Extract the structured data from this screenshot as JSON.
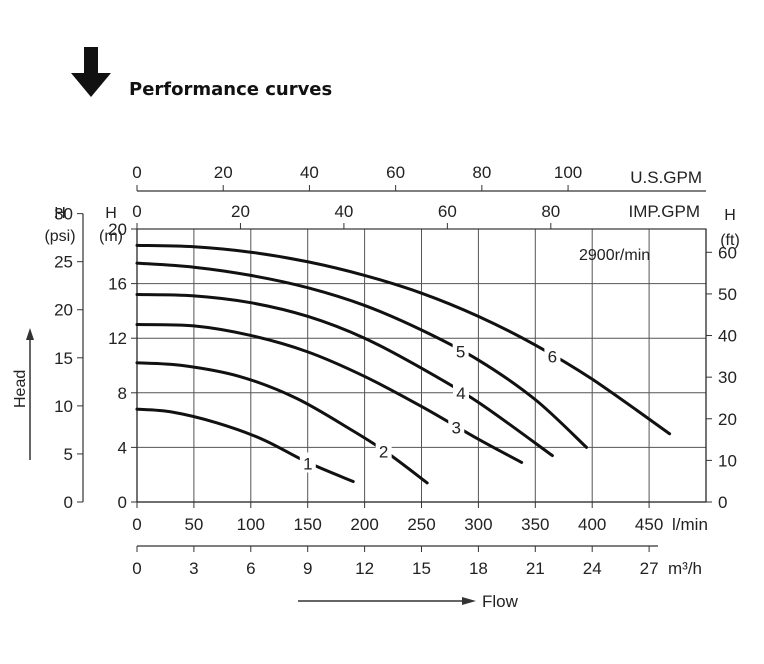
{
  "title": "Performance curves",
  "chart_data": {
    "type": "line",
    "speed_label": "2900r/min",
    "flow_label": "Flow",
    "head_label": "Head",
    "axes": {
      "x_lmin": {
        "unit": "l/min",
        "ticks": [
          0,
          50,
          100,
          150,
          200,
          250,
          300,
          350,
          400,
          450
        ],
        "range": [
          0,
          500
        ]
      },
      "x_m3h": {
        "unit": "m³/h",
        "ticks": [
          0,
          3,
          6,
          9,
          12,
          15,
          18,
          21,
          24,
          27
        ],
        "range": [
          0,
          30
        ]
      },
      "x_usgpm": {
        "unit": "U.S.GPM",
        "ticks": [
          0,
          20,
          40,
          60,
          80,
          100
        ],
        "range": [
          0,
          132
        ]
      },
      "x_impgpm": {
        "unit": "IMP.GPM",
        "ticks": [
          0,
          20,
          40,
          60,
          80
        ],
        "range": [
          0,
          110
        ]
      },
      "y_m": {
        "unit": "H\n(m)",
        "ticks": [
          0,
          4,
          8,
          12,
          16,
          20
        ],
        "range": [
          0,
          20
        ]
      },
      "y_psi": {
        "unit": "H\n(psi)",
        "ticks": [
          0,
          5,
          10,
          15,
          20,
          25,
          30
        ],
        "range": [
          0,
          28.4
        ]
      },
      "y_ft": {
        "unit": "H\n(ft)",
        "ticks": [
          0,
          10,
          20,
          30,
          40,
          50,
          60
        ],
        "range": [
          0,
          65.6
        ]
      }
    },
    "grid": true,
    "series": [
      {
        "name": "1",
        "x": [
          0,
          30,
          70,
          110,
          150,
          190
        ],
        "y": [
          6.8,
          6.6,
          5.8,
          4.6,
          2.9,
          1.5
        ]
      },
      {
        "name": "2",
        "x": [
          0,
          40,
          90,
          140,
          190,
          220,
          255
        ],
        "y": [
          10.2,
          10.0,
          9.2,
          7.6,
          5.2,
          3.6,
          1.4
        ]
      },
      {
        "name": "3",
        "x": [
          0,
          50,
          100,
          150,
          200,
          250,
          300,
          338
        ],
        "y": [
          13.0,
          12.9,
          12.2,
          11.0,
          9.2,
          7.0,
          4.6,
          2.9
        ]
      },
      {
        "name": "4",
        "x": [
          0,
          50,
          100,
          150,
          200,
          250,
          300,
          365
        ],
        "y": [
          15.2,
          15.1,
          14.6,
          13.6,
          12.0,
          9.8,
          7.3,
          3.4
        ]
      },
      {
        "name": "5",
        "x": [
          0,
          50,
          100,
          150,
          200,
          250,
          300,
          350,
          395
        ],
        "y": [
          17.5,
          17.2,
          16.6,
          15.7,
          14.4,
          12.6,
          10.4,
          7.5,
          4.0
        ]
      },
      {
        "name": "6",
        "x": [
          0,
          50,
          100,
          150,
          200,
          250,
          300,
          350,
          400,
          468
        ],
        "y": [
          18.8,
          18.7,
          18.3,
          17.6,
          16.6,
          15.3,
          13.6,
          11.5,
          9.0,
          5.0
        ]
      }
    ]
  }
}
